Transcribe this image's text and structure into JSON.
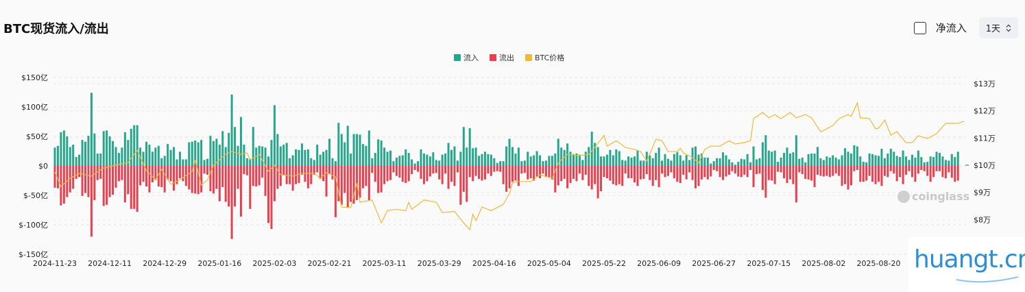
{
  "header": {
    "title": "BTC现货流入/流出",
    "net_inflow_label": "净流入",
    "net_inflow_checked": false,
    "interval": "1天",
    "interval_icon": "chevron-up-down-icon"
  },
  "watermarks": {
    "coinglass": "coinglass",
    "site": "huangt.cn"
  },
  "chart_data": {
    "type": "bar",
    "legend": [
      {
        "name": "流入",
        "color": "#26a68a"
      },
      {
        "name": "流出",
        "color": "#e8404f"
      },
      {
        "name": "BTC价格",
        "color": "#f0b93b"
      }
    ],
    "legend_position": "top-center",
    "start_date": "2024-11-23",
    "x_ticks": [
      "2024-11-23",
      "2024-12-11",
      "2024-12-29",
      "2025-01-16",
      "2025-02-03",
      "2025-02-21",
      "2025-03-11",
      "2025-03-29",
      "2025-04-16",
      "2025-05-04",
      "2025-05-22",
      "2025-06-09",
      "2025-06-27",
      "2025-07-15",
      "2025-08-02",
      "2025-08-20"
    ],
    "y_left": {
      "ticks": [
        150,
        100,
        50,
        0,
        -50,
        -100,
        -150
      ],
      "labels": [
        "$150亿",
        "$100亿",
        "$50亿",
        "$0",
        "$-50亿",
        "$-100亿",
        "$-150亿"
      ],
      "range": [
        -150,
        150
      ],
      "unit": "亿"
    },
    "y_right": {
      "ticks": [
        13,
        12,
        11,
        10,
        9,
        8
      ],
      "labels": [
        "$13万",
        "$12万",
        "$11万",
        "$10万",
        "$9万",
        "$8万"
      ],
      "range": [
        7.3,
        13.25
      ],
      "unit": "万"
    },
    "grid": true,
    "inflow": [
      31,
      34,
      57,
      60,
      50,
      32,
      36,
      15,
      19,
      44,
      41,
      51,
      124,
      55,
      21,
      21,
      59,
      60,
      50,
      42,
      32,
      22,
      31,
      57,
      44,
      63,
      69,
      69,
      31,
      24,
      41,
      36,
      24,
      31,
      34,
      13,
      17,
      37,
      27,
      32,
      11,
      24,
      11,
      11,
      40,
      41,
      43,
      40,
      44,
      10,
      12,
      51,
      42,
      46,
      36,
      59,
      32,
      56,
      121,
      66,
      34,
      83,
      36,
      13,
      12,
      66,
      31,
      34,
      33,
      31,
      16,
      44,
      103,
      54,
      33,
      36,
      39,
      13,
      18,
      28,
      27,
      38,
      27,
      28,
      13,
      10,
      36,
      19,
      24,
      27,
      46,
      13,
      8,
      73,
      54,
      40,
      68,
      21,
      54,
      54,
      53,
      37,
      34,
      60,
      13,
      22,
      45,
      43,
      31,
      24,
      26,
      8,
      14,
      17,
      18,
      28,
      22,
      11,
      4,
      8,
      28,
      21,
      19,
      16,
      23,
      10,
      9,
      19,
      21,
      39,
      27,
      33,
      9,
      24,
      66,
      31,
      64,
      30,
      31,
      17,
      20,
      24,
      20,
      19,
      13,
      5,
      8,
      8,
      33,
      46,
      32,
      21,
      31,
      8,
      9,
      24,
      16,
      18,
      25,
      18,
      8,
      9,
      17,
      17,
      21,
      46,
      31,
      27,
      38,
      24,
      20,
      21,
      19,
      10,
      24,
      32,
      58,
      39,
      32,
      16,
      16,
      19,
      27,
      18,
      28,
      25,
      10,
      9,
      16,
      14,
      16,
      26,
      9,
      9,
      24,
      18,
      13,
      22,
      31,
      9,
      20,
      12,
      9,
      20,
      23,
      18,
      9,
      18,
      10,
      31,
      33,
      19,
      21,
      14,
      14,
      4,
      8,
      13,
      13,
      23,
      18,
      11,
      6,
      2,
      7,
      12,
      11,
      20,
      6,
      33,
      11,
      13,
      40,
      52,
      26,
      24,
      26,
      7,
      14,
      22,
      31,
      21,
      23,
      52,
      12,
      14,
      6,
      20,
      21,
      21,
      32,
      13,
      10,
      16,
      14,
      18,
      14,
      11,
      18,
      30,
      24,
      21,
      35,
      33,
      16,
      7,
      6,
      21,
      20,
      18,
      17,
      29,
      13,
      21,
      29,
      24,
      17,
      15,
      26,
      16,
      10,
      19,
      14,
      26,
      15,
      6,
      7,
      16,
      15,
      24,
      22,
      16,
      10,
      9,
      20,
      15,
      24
    ],
    "outflow": [
      37,
      38,
      67,
      64,
      53,
      45,
      39,
      22,
      19,
      51,
      46,
      53,
      120,
      58,
      24,
      22,
      68,
      66,
      53,
      49,
      37,
      26,
      24,
      62,
      48,
      73,
      73,
      78,
      33,
      27,
      35,
      45,
      28,
      24,
      35,
      36,
      45,
      23,
      26,
      42,
      31,
      21,
      26,
      34,
      40,
      46,
      47,
      48,
      45,
      13,
      15,
      43,
      47,
      39,
      60,
      36,
      61,
      69,
      124,
      69,
      39,
      86,
      14,
      16,
      73,
      34,
      35,
      33,
      20,
      51,
      97,
      107,
      60,
      39,
      34,
      16,
      31,
      31,
      42,
      31,
      29,
      15,
      27,
      38,
      31,
      15,
      11,
      22,
      26,
      52,
      13,
      23,
      87,
      60,
      66,
      46,
      71,
      61,
      64,
      58,
      54,
      38,
      34,
      58,
      12,
      27,
      46,
      45,
      31,
      26,
      24,
      11,
      17,
      20,
      27,
      29,
      26,
      14,
      7,
      10,
      22,
      31,
      26,
      18,
      13,
      12,
      23,
      31,
      13,
      39,
      27,
      34,
      11,
      66,
      44,
      61,
      19,
      26,
      17,
      22,
      25,
      23,
      13,
      17,
      10,
      9,
      10,
      31,
      44,
      38,
      27,
      25,
      34,
      13,
      12,
      23,
      21,
      25,
      18,
      21,
      13,
      19,
      19,
      23,
      45,
      33,
      26,
      22,
      38,
      29,
      22,
      26,
      13,
      24,
      15,
      34,
      40,
      31,
      55,
      43,
      19,
      21,
      25,
      31,
      33,
      31,
      34,
      13,
      21,
      21,
      28,
      34,
      23,
      22,
      14,
      24,
      34,
      24,
      36,
      13,
      19,
      17,
      11,
      21,
      27,
      29,
      15,
      23,
      11,
      24,
      38,
      34,
      23,
      19,
      23,
      18,
      7,
      9,
      19,
      24,
      18,
      15,
      9,
      13,
      18,
      19,
      15,
      19,
      7,
      36,
      14,
      13,
      41,
      54,
      24,
      25,
      31,
      10,
      11,
      21,
      29,
      23,
      31,
      62,
      11,
      14,
      22,
      23,
      25,
      36,
      15,
      17,
      18,
      17,
      19,
      17,
      13,
      17,
      34,
      31,
      40,
      33,
      9,
      7,
      27,
      27,
      25,
      17,
      27,
      31,
      27,
      34,
      17,
      19,
      9,
      13,
      26,
      19,
      31,
      15,
      9,
      19,
      27,
      13,
      7,
      9,
      17,
      27,
      19,
      9,
      9,
      19,
      21,
      11,
      20,
      27,
      25
    ],
    "price": [
      [
        "2024-11-23",
        9.75
      ],
      [
        "2024-11-25",
        9.22
      ],
      [
        "2024-11-28",
        9.52
      ],
      [
        "2024-12-01",
        9.7
      ],
      [
        "2024-12-05",
        9.6
      ],
      [
        "2024-12-09",
        9.9
      ],
      [
        "2024-12-13",
        10.0
      ],
      [
        "2024-12-17",
        10.1
      ],
      [
        "2024-12-20",
        10.55
      ],
      [
        "2024-12-23",
        9.8
      ],
      [
        "2024-12-26",
        9.47
      ],
      [
        "2024-12-28",
        9.85
      ],
      [
        "2024-12-31",
        9.3
      ],
      [
        "2025-01-03",
        9.47
      ],
      [
        "2025-01-07",
        9.77
      ],
      [
        "2025-01-08",
        10.2
      ],
      [
        "2025-01-10",
        9.27
      ],
      [
        "2025-01-12",
        9.45
      ],
      [
        "2025-01-14",
        10.0
      ],
      [
        "2025-01-18",
        10.4
      ],
      [
        "2025-01-20",
        10.5
      ],
      [
        "2025-01-23",
        10.4
      ],
      [
        "2025-01-25",
        10.45
      ],
      [
        "2025-01-26",
        10.2
      ],
      [
        "2025-01-29",
        10.4
      ],
      [
        "2025-02-01",
        9.77
      ],
      [
        "2025-02-03",
        10.0
      ],
      [
        "2025-02-05",
        9.65
      ],
      [
        "2025-02-09",
        9.6
      ],
      [
        "2025-02-12",
        9.7
      ],
      [
        "2025-02-16",
        9.7
      ],
      [
        "2025-02-18",
        9.52
      ],
      [
        "2025-02-20",
        9.72
      ],
      [
        "2025-02-23",
        9.57
      ],
      [
        "2025-02-25",
        8.46
      ],
      [
        "2025-02-28",
        8.44
      ],
      [
        "2025-03-02",
        9.35
      ],
      [
        "2025-03-03",
        8.64
      ],
      [
        "2025-03-07",
        8.72
      ],
      [
        "2025-03-10",
        7.88
      ],
      [
        "2025-03-12",
        8.33
      ],
      [
        "2025-03-15",
        8.38
      ],
      [
        "2025-03-18",
        8.33
      ],
      [
        "2025-03-19",
        8.64
      ],
      [
        "2025-03-20",
        8.38
      ],
      [
        "2025-03-24",
        8.72
      ],
      [
        "2025-03-28",
        8.64
      ],
      [
        "2025-03-30",
        8.26
      ],
      [
        "2025-04-03",
        8.3
      ],
      [
        "2025-04-06",
        7.88
      ],
      [
        "2025-04-08",
        7.63
      ],
      [
        "2025-04-09",
        8.2
      ],
      [
        "2025-04-10",
        7.96
      ],
      [
        "2025-04-12",
        8.46
      ],
      [
        "2025-04-15",
        8.33
      ],
      [
        "2025-04-19",
        8.56
      ],
      [
        "2025-04-21",
        8.97
      ],
      [
        "2025-04-22",
        9.35
      ],
      [
        "2025-04-24",
        9.4
      ],
      [
        "2025-04-28",
        9.4
      ],
      [
        "2025-05-01",
        9.65
      ],
      [
        "2025-05-05",
        9.52
      ],
      [
        "2025-05-07",
        10.08
      ],
      [
        "2025-05-10",
        10.4
      ],
      [
        "2025-05-14",
        10.35
      ],
      [
        "2025-05-17",
        10.4
      ],
      [
        "2025-05-19",
        10.65
      ],
      [
        "2025-05-22",
        11.1
      ],
      [
        "2025-05-23",
        10.7
      ],
      [
        "2025-05-26",
        10.9
      ],
      [
        "2025-05-29",
        10.65
      ],
      [
        "2025-06-01",
        10.58
      ],
      [
        "2025-06-03",
        10.5
      ],
      [
        "2025-06-05",
        10.15
      ],
      [
        "2025-06-08",
        10.95
      ],
      [
        "2025-06-10",
        10.9
      ],
      [
        "2025-06-12",
        10.5
      ],
      [
        "2025-06-15",
        10.5
      ],
      [
        "2025-06-16",
        10.62
      ],
      [
        "2025-06-17",
        10.45
      ],
      [
        "2025-06-20",
        10.28
      ],
      [
        "2025-06-22",
        10.08
      ],
      [
        "2025-06-24",
        10.58
      ],
      [
        "2025-06-26",
        10.7
      ],
      [
        "2025-06-29",
        10.7
      ],
      [
        "2025-07-02",
        10.9
      ],
      [
        "2025-07-04",
        10.78
      ],
      [
        "2025-07-07",
        10.83
      ],
      [
        "2025-07-09",
        10.9
      ],
      [
        "2025-07-10",
        11.71
      ],
      [
        "2025-07-13",
        11.94
      ],
      [
        "2025-07-15",
        11.74
      ],
      [
        "2025-07-17",
        11.86
      ],
      [
        "2025-07-19",
        11.71
      ],
      [
        "2025-07-22",
        11.94
      ],
      [
        "2025-07-24",
        11.74
      ],
      [
        "2025-07-27",
        11.86
      ],
      [
        "2025-07-29",
        11.74
      ],
      [
        "2025-08-01",
        11.23
      ],
      [
        "2025-08-02",
        11.28
      ],
      [
        "2025-08-05",
        11.46
      ],
      [
        "2025-08-07",
        11.71
      ],
      [
        "2025-08-10",
        11.86
      ],
      [
        "2025-08-11",
        11.79
      ],
      [
        "2025-08-13",
        12.29
      ],
      [
        "2025-08-14",
        11.74
      ],
      [
        "2025-08-17",
        11.71
      ],
      [
        "2025-08-19",
        11.34
      ],
      [
        "2025-08-20",
        11.36
      ],
      [
        "2025-08-22",
        11.66
      ],
      [
        "2025-08-24",
        11.1
      ],
      [
        "2025-08-26",
        11.23
      ],
      [
        "2025-08-29",
        10.83
      ],
      [
        "2025-08-31",
        10.83
      ],
      [
        "2025-09-02",
        11.08
      ],
      [
        "2025-09-05",
        10.98
      ],
      [
        "2025-09-08",
        11.16
      ],
      [
        "2025-09-11",
        11.54
      ],
      [
        "2025-09-15",
        11.54
      ],
      [
        "2025-09-17",
        11.61
      ]
    ]
  }
}
